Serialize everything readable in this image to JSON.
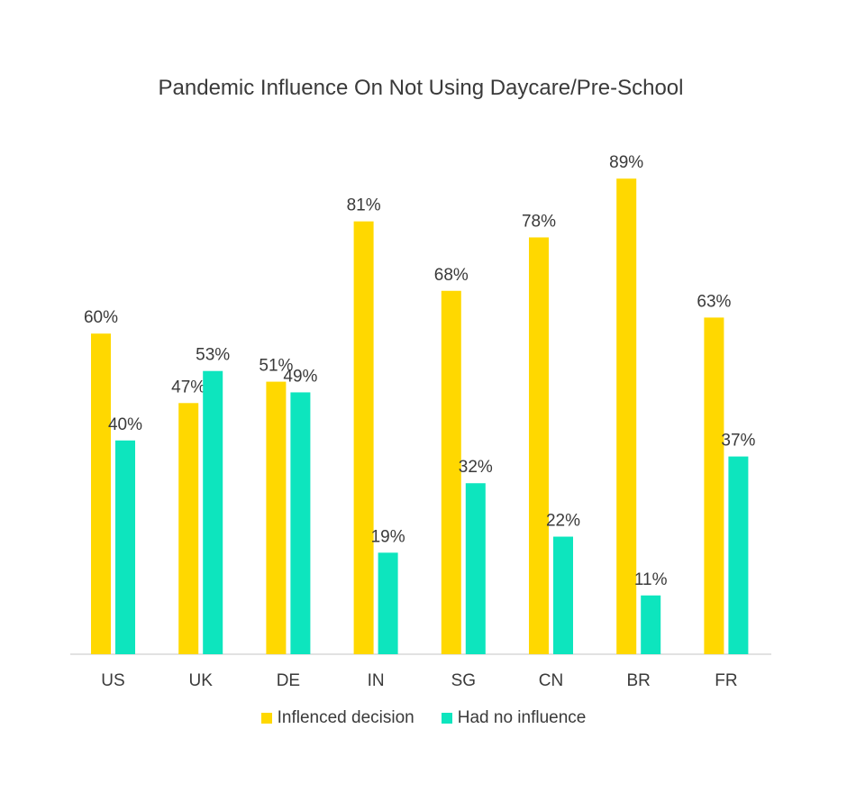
{
  "chart_data": {
    "type": "bar",
    "title": "Pandemic Influence On Not Using Daycare/Pre-School",
    "xlabel": "",
    "ylabel": "",
    "categories": [
      "US",
      "UK",
      "DE",
      "IN",
      "SG",
      "CN",
      "BR",
      "FR"
    ],
    "series": [
      {
        "name": "Inflenced decision",
        "values": [
          60,
          47,
          51,
          81,
          68,
          78,
          89,
          63
        ],
        "labels": [
          "60%",
          "47%",
          "51%",
          "81%",
          "68%",
          "78%",
          "89%",
          "63%"
        ],
        "color": "#FFD800"
      },
      {
        "name": "Had no influence",
        "values": [
          40,
          53,
          49,
          19,
          32,
          22,
          11,
          37
        ],
        "labels": [
          "40%",
          "53%",
          "49%",
          "19%",
          "32%",
          "22%",
          "11%",
          "37%"
        ],
        "color": "#0DE5BE"
      }
    ],
    "ylim": [
      0,
      100
    ],
    "grid": false,
    "legend_position": "bottom"
  }
}
